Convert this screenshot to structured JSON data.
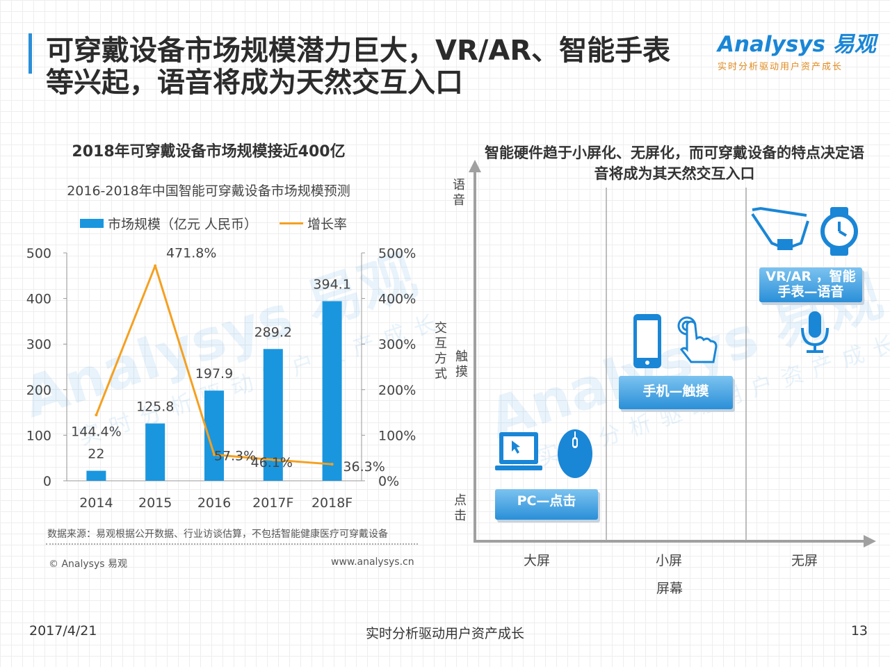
{
  "header": {
    "title": "可穿戴设备市场规模潜力巨大，VR/AR、智能手表等兴起，语音将成为天然交互入口",
    "logo_main": "Analysys 易观",
    "logo_tagline": "实时分析驱动用户资产成长"
  },
  "colors": {
    "accent": "#1a96df",
    "line": "#f5a020"
  },
  "left_panel": {
    "heading": "2018年可穿戴设备市场规模接近400亿",
    "source": "数据来源：易观根据公开数据、行业访谈估算，不包括智能健康医疗可穿戴设备",
    "copyright": "© Analysys 易观",
    "website": "www.analysys.cn"
  },
  "chart_data": {
    "type": "bar",
    "title": "2016-2018年中国智能可穿戴设备市场规模预测",
    "categories": [
      "2014",
      "2015",
      "2016",
      "2017F",
      "2018F"
    ],
    "legend_position": "top",
    "grid": false,
    "series": [
      {
        "name": "市场规模（亿元 人民币）",
        "type": "bar",
        "axis": "left",
        "values": [
          22,
          125.8,
          197.9,
          289.2,
          394.1
        ],
        "labels": [
          "22",
          "125.8",
          "197.9",
          "289.2",
          "394.1"
        ]
      },
      {
        "name": "增长率",
        "type": "line",
        "axis": "right",
        "values": [
          144.4,
          471.8,
          57.3,
          46.1,
          36.3
        ],
        "labels": [
          "144.4%",
          "471.8%",
          "57.3%",
          "46.1%",
          "36.3%"
        ]
      }
    ],
    "y_left": {
      "lim": [
        0,
        500
      ],
      "ticks": [
        "0",
        "100",
        "200",
        "300",
        "400",
        "500"
      ]
    },
    "y_right": {
      "lim": [
        0,
        500
      ],
      "ticks": [
        "0%",
        "100%",
        "200%",
        "300%",
        "400%",
        "500%"
      ]
    }
  },
  "right_panel": {
    "heading": "智能硬件趋于小屏化、无屏化，而可穿戴设备的特点决定语音将成为其天然交互入口",
    "y_axis_title": "交互方式",
    "y_levels": [
      "点击",
      "触摸",
      "语音"
    ],
    "x_axis_title": "屏幕",
    "x_levels": [
      "大屏",
      "小屏",
      "无屏"
    ],
    "tags": {
      "pc": "PC—点击",
      "phone": "手机—触摸",
      "vr_line1": "VR/AR ，智能",
      "vr_line2": "手表—语音"
    },
    "icons": [
      "laptop-icon",
      "mouse-icon",
      "smartphone-icon",
      "hand-tap-icon",
      "smart-glasses-icon",
      "smartwatch-icon",
      "microphone-icon"
    ]
  },
  "footer": {
    "date": "2017/4/21",
    "slogan": "实时分析驱动用户资产成长",
    "page": "13"
  }
}
